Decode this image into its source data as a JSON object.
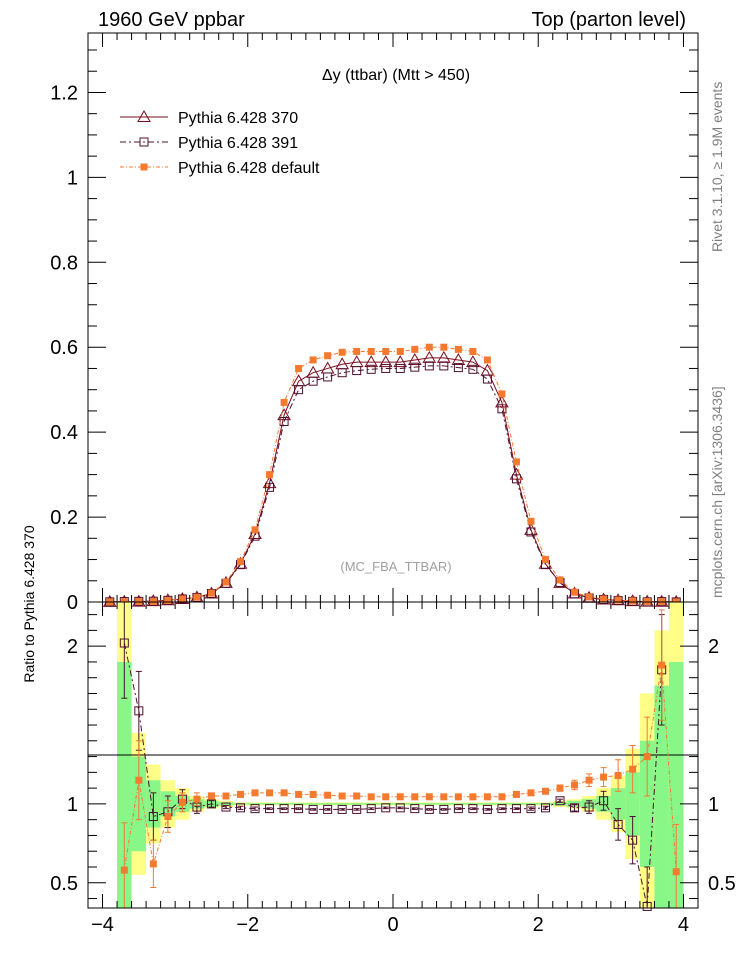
{
  "header": {
    "left": "1960 GeV ppbar",
    "right": "Top (parton level)"
  },
  "side": {
    "rivet": "Rivet 3.1.10, ≥ 1.9M events",
    "mcplots": "mcplots.cern.ch [arXiv:1306.3436]"
  },
  "chart_data": {
    "type": "line",
    "title": "Δy (ttbar) (Mtt > 450)",
    "watermark": "(MC_FBA_TTBAR)",
    "xlabel": "",
    "ylabel_main": "",
    "ylabel_ratio": "Ratio to Pythia 6.428 370",
    "xlim": [
      -4.2,
      4.2
    ],
    "ylim_main": [
      0,
      1.34
    ],
    "ylim_ratio": [
      0.34,
      2.28
    ],
    "xticks": [
      "−4",
      "−2",
      "0",
      "2",
      "4"
    ],
    "xtick_values": [
      -4,
      -2,
      0,
      2,
      4
    ],
    "yticks_main": [
      "0",
      "0.2",
      "0.4",
      "0.6",
      "0.8",
      "1",
      "1.2"
    ],
    "ytick_values_main": [
      0,
      0.2,
      0.4,
      0.6,
      0.8,
      1,
      1.2
    ],
    "yticks_ratio": [
      "0.5",
      "1",
      "2"
    ],
    "ytick_values_ratio": [
      0.5,
      1,
      2
    ],
    "x": [
      -3.9,
      -3.7,
      -3.5,
      -3.3,
      -3.1,
      -2.9,
      -2.7,
      -2.5,
      -2.3,
      -2.1,
      -1.9,
      -1.7,
      -1.5,
      -1.3,
      -1.1,
      -0.9,
      -0.7,
      -0.5,
      -0.3,
      -0.1,
      0.1,
      0.3,
      0.5,
      0.7,
      0.9,
      1.1,
      1.3,
      1.5,
      1.7,
      1.9,
      2.1,
      2.3,
      2.5,
      2.7,
      2.9,
      3.1,
      3.3,
      3.5,
      3.7,
      3.9
    ],
    "series": [
      {
        "name": "Pythia 6.428 370",
        "color": "#7a0c1e",
        "marker": "triangle",
        "values": [
          0.0003,
          0.0006,
          0.001,
          0.002,
          0.004,
          0.007,
          0.011,
          0.02,
          0.045,
          0.09,
          0.16,
          0.28,
          0.44,
          0.52,
          0.54,
          0.55,
          0.56,
          0.565,
          0.565,
          0.565,
          0.565,
          0.57,
          0.575,
          0.575,
          0.57,
          0.565,
          0.545,
          0.47,
          0.3,
          0.17,
          0.09,
          0.045,
          0.02,
          0.01,
          0.006,
          0.004,
          0.002,
          0.001,
          0.0005,
          0.0002
        ]
      },
      {
        "name": "Pythia 6.428 391",
        "color": "#4d0f2e",
        "marker": "open-square",
        "values": [
          0.0003,
          0.001,
          0.0016,
          0.0019,
          0.004,
          0.0072,
          0.0108,
          0.02,
          0.044,
          0.088,
          0.155,
          0.27,
          0.425,
          0.5,
          0.52,
          0.53,
          0.54,
          0.545,
          0.548,
          0.55,
          0.55,
          0.553,
          0.556,
          0.556,
          0.552,
          0.548,
          0.525,
          0.455,
          0.29,
          0.165,
          0.088,
          0.046,
          0.0195,
          0.0098,
          0.0061,
          0.0035,
          0.00155,
          0.00035,
          0.00092,
          0.0002
        ]
      },
      {
        "name": "Pythia 6.428 default",
        "color": "#f47a30",
        "marker": "filled-square",
        "values": [
          0.0002,
          0.00035,
          0.0012,
          0.00125,
          0.0037,
          0.0071,
          0.0113,
          0.021,
          0.047,
          0.095,
          0.17,
          0.3,
          0.47,
          0.55,
          0.57,
          0.58,
          0.588,
          0.59,
          0.59,
          0.59,
          0.59,
          0.595,
          0.6,
          0.6,
          0.595,
          0.59,
          0.57,
          0.49,
          0.33,
          0.19,
          0.1,
          0.052,
          0.023,
          0.012,
          0.007,
          0.0045,
          0.0026,
          0.0012,
          0.00095,
          0.00013
        ]
      }
    ],
    "ratio_series": [
      {
        "name": "Pythia 6.428 391",
        "values": [
          null,
          2.02,
          1.59,
          0.92,
          0.95,
          1.03,
          0.98,
          1.0,
          0.98,
          0.975,
          0.97,
          0.97,
          0.97,
          0.97,
          0.965,
          0.965,
          0.965,
          0.965,
          0.97,
          0.975,
          0.975,
          0.97,
          0.965,
          0.965,
          0.97,
          0.97,
          0.965,
          0.97,
          0.97,
          0.97,
          0.975,
          1.02,
          0.975,
          0.98,
          1.02,
          0.87,
          0.77,
          0.35,
          1.85,
          null
        ],
        "errors": [
          0,
          0.35,
          0.25,
          0.15,
          0.1,
          0.06,
          0.04,
          0.02,
          0.01,
          0.01,
          0.01,
          0.005,
          0.005,
          0.005,
          0.005,
          0.005,
          0.005,
          0.005,
          0.005,
          0.005,
          0.005,
          0.005,
          0.005,
          0.005,
          0.005,
          0.005,
          0.005,
          0.005,
          0.005,
          0.01,
          0.01,
          0.01,
          0.02,
          0.04,
          0.06,
          0.1,
          0.15,
          0.25,
          0.35,
          0
        ]
      },
      {
        "name": "Pythia 6.428 default",
        "values": [
          null,
          0.58,
          1.15,
          0.62,
          0.92,
          1.01,
          1.03,
          1.05,
          1.05,
          1.06,
          1.07,
          1.07,
          1.07,
          1.06,
          1.06,
          1.055,
          1.05,
          1.05,
          1.045,
          1.045,
          1.045,
          1.045,
          1.045,
          1.045,
          1.045,
          1.045,
          1.045,
          1.045,
          1.06,
          1.07,
          1.08,
          1.1,
          1.12,
          1.15,
          1.17,
          1.18,
          1.22,
          1.3,
          1.88,
          0.57
        ],
        "errors": [
          0,
          0.3,
          0.25,
          0.15,
          0.1,
          0.06,
          0.04,
          0.02,
          0.01,
          0.01,
          0.01,
          0.005,
          0.005,
          0.005,
          0.005,
          0.005,
          0.005,
          0.005,
          0.005,
          0.005,
          0.005,
          0.005,
          0.005,
          0.005,
          0.005,
          0.005,
          0.005,
          0.005,
          0.005,
          0.01,
          0.01,
          0.02,
          0.03,
          0.04,
          0.06,
          0.1,
          0.15,
          0.25,
          0.35,
          0.3
        ]
      }
    ],
    "band_green_halfwidth": [
      0,
      0.9,
      0.3,
      0.15,
      0.08,
      0.05,
      0.03,
      0.02,
      0.01,
      0.005,
      0.005,
      0.005,
      0.005,
      0.005,
      0.005,
      0.005,
      0.005,
      0.005,
      0.005,
      0.005,
      0.005,
      0.005,
      0.005,
      0.005,
      0.005,
      0.005,
      0.005,
      0.005,
      0.005,
      0.005,
      0.005,
      0.01,
      0.02,
      0.03,
      0.05,
      0.1,
      0.2,
      0.4,
      0.75,
      0.9
    ],
    "band_yellow_halfwidth": [
      0,
      1.3,
      0.45,
      0.25,
      0.15,
      0.1,
      0.05,
      0.03,
      0.02,
      0.01,
      0.01,
      0.01,
      0.01,
      0.01,
      0.01,
      0.01,
      0.01,
      0.01,
      0.01,
      0.01,
      0.01,
      0.01,
      0.01,
      0.01,
      0.01,
      0.01,
      0.01,
      0.01,
      0.01,
      0.01,
      0.01,
      0.02,
      0.03,
      0.05,
      0.1,
      0.18,
      0.35,
      0.7,
      1.1,
      1.3
    ]
  }
}
